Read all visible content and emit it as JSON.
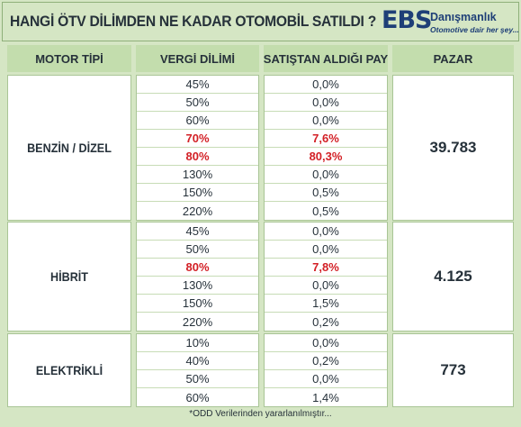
{
  "header": {
    "title": "HANGİ ÖTV DİLİMDEN NE KADAR OTOMOBİL SATILDI ?",
    "logo_ebs": "EBS",
    "logo_name": "Danışmanlık",
    "logo_slogan": "Otomotive dair her şey..."
  },
  "columns": {
    "motor": "MOTOR TİPİ",
    "vergi": "VERGİ DİLİMİ",
    "pay": "SATIŞTAN ALDIĞI PAY",
    "pazar": "PAZAR"
  },
  "groups": [
    {
      "name": "BENZİN / DİZEL",
      "pazar": "39.783",
      "rows": [
        {
          "rate": "45%",
          "share": "0,0%",
          "highlight": false
        },
        {
          "rate": "50%",
          "share": "0,0%",
          "highlight": false
        },
        {
          "rate": "60%",
          "share": "0,0%",
          "highlight": false
        },
        {
          "rate": "70%",
          "share": "7,6%",
          "highlight": true
        },
        {
          "rate": "80%",
          "share": "80,3%",
          "highlight": true
        },
        {
          "rate": "130%",
          "share": "0,0%",
          "highlight": false
        },
        {
          "rate": "150%",
          "share": "0,5%",
          "highlight": false
        },
        {
          "rate": "220%",
          "share": "0,5%",
          "highlight": false
        }
      ]
    },
    {
      "name": "HİBRİT",
      "pazar": "4.125",
      "rows": [
        {
          "rate": "45%",
          "share": "0,0%",
          "highlight": false
        },
        {
          "rate": "50%",
          "share": "0,0%",
          "highlight": false
        },
        {
          "rate": "80%",
          "share": "7,8%",
          "highlight": true
        },
        {
          "rate": "130%",
          "share": "0,0%",
          "highlight": false
        },
        {
          "rate": "150%",
          "share": "1,5%",
          "highlight": false
        },
        {
          "rate": "220%",
          "share": "0,2%",
          "highlight": false
        }
      ]
    },
    {
      "name": "ELEKTRİKLİ",
      "pazar": "773",
      "rows": [
        {
          "rate": "10%",
          "share": "0,0%",
          "highlight": false
        },
        {
          "rate": "40%",
          "share": "0,2%",
          "highlight": false
        },
        {
          "rate": "50%",
          "share": "0,0%",
          "highlight": false
        },
        {
          "rate": "60%",
          "share": "1,4%",
          "highlight": false
        }
      ]
    }
  ],
  "footnote": "*ODD Verilerinden yararlanılmıştır..."
}
